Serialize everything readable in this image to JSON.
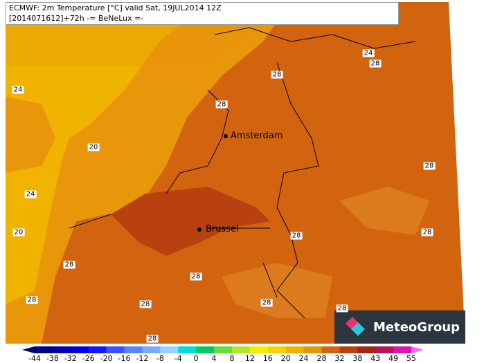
{
  "header": {
    "line1": "ECMWF: 2m Temperature [°C] valid Sat, 19JUL2014 12Z",
    "line2": "[2014071612]+72h -= BeNeLux =-"
  },
  "cities": [
    "Amsterdam",
    "Brussel"
  ],
  "contour_labels": [
    "24",
    "20",
    "24",
    "20",
    "28",
    "28",
    "28",
    "28",
    "28",
    "28",
    "28",
    "24",
    "28",
    "28",
    "28",
    "28",
    "28",
    "28"
  ],
  "logo": "MeteoGroup",
  "colorbar": {
    "ticks": [
      -44,
      -38,
      -32,
      -26,
      -20,
      -16,
      -12,
      -8,
      -4,
      0,
      4,
      8,
      12,
      16,
      20,
      24,
      28,
      32,
      38,
      43,
      49,
      55
    ],
    "colors": [
      "#000070",
      "#00008c",
      "#0000b4",
      "#0000dc",
      "#1414ff",
      "#3c50ff",
      "#5a82ff",
      "#78aaff",
      "#96d2ff",
      "#00dcdc",
      "#00c864",
      "#64dc3c",
      "#b4e628",
      "#f0f000",
      "#f5d200",
      "#f0b400",
      "#e8960a",
      "#d26414",
      "#b8410f",
      "#a02814",
      "#b4145a",
      "#dc14b4",
      "#ff64f0"
    ]
  }
}
